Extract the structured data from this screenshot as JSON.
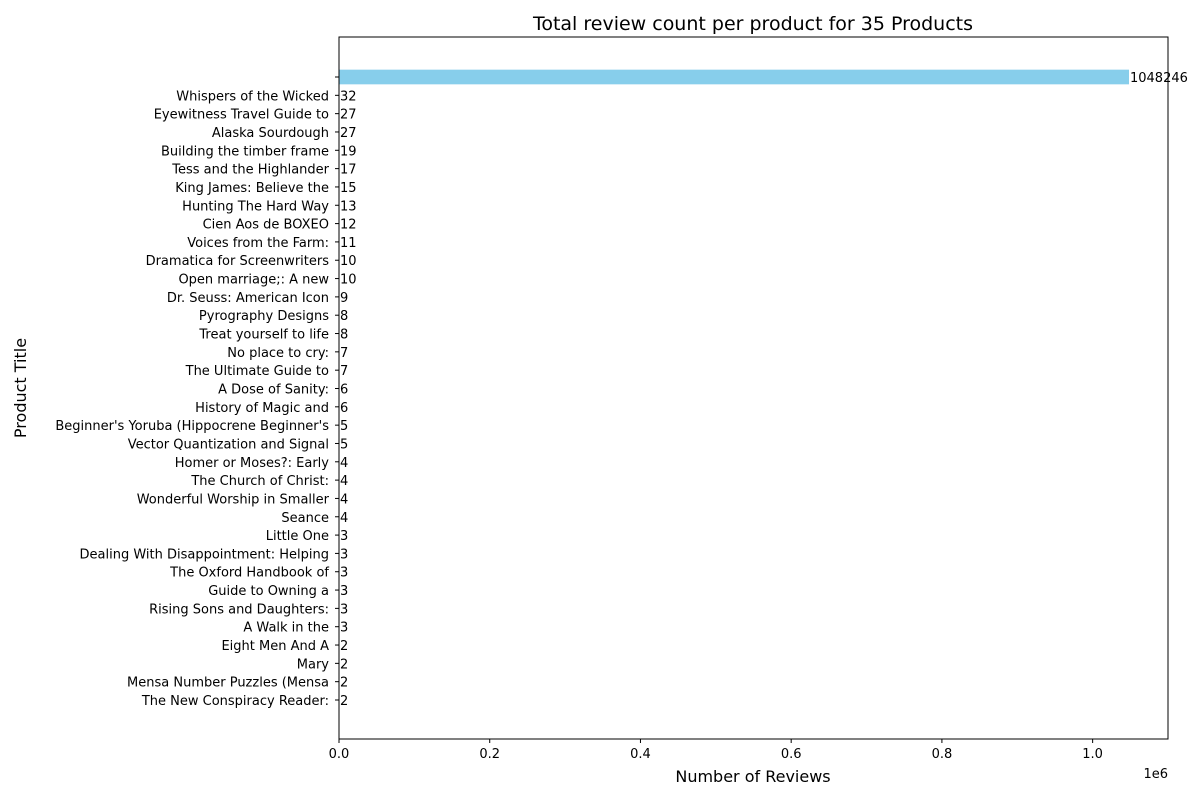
{
  "chart_data": {
    "type": "bar",
    "orientation": "horizontal",
    "title": "Total review count per product for 35 Products",
    "xlabel": "Number of Reviews",
    "ylabel": "Product Title",
    "x_offset_label": "1e6",
    "xlim": [
      0,
      1100000
    ],
    "x_ticks": [
      0,
      200000,
      400000,
      600000,
      800000,
      1000000
    ],
    "x_tick_labels": [
      "0.0",
      "0.2",
      "0.4",
      "0.6",
      "0.8",
      "1.0"
    ],
    "grid": false,
    "bar_color": "#87ceeb",
    "categories": [
      "",
      "Whispers of the Wicked",
      "Eyewitness Travel Guide to",
      "Alaska Sourdough",
      "Building the timber frame",
      "Tess and the Highlander",
      "King James: Believe the",
      "Hunting The Hard Way",
      "Cien Aos de BOXEO",
      "Voices from the Farm:",
      "Dramatica for Screenwriters",
      "Open marriage;: A new",
      "Dr. Seuss: American Icon",
      "Pyrography Designs",
      "Treat yourself to life",
      "No place to cry:",
      "The Ultimate Guide to",
      "A Dose of Sanity:",
      "History of Magic and",
      "Beginner's Yoruba (Hippocrene Beginner's",
      "Vector Quantization and Signal",
      "Homer or Moses?: Early",
      "The Church of Christ:",
      "Wonderful Worship in Smaller",
      "Seance",
      "Little One",
      "Dealing With Disappointment: Helping",
      "The Oxford Handbook of",
      "Guide to Owning a",
      "Rising Sons and Daughters:",
      "A Walk in the",
      "Eight Men And A",
      "Mary",
      "Mensa Number Puzzles (Mensa",
      "The New Conspiracy Reader:"
    ],
    "values": [
      1048246,
      32,
      27,
      27,
      19,
      17,
      15,
      13,
      12,
      11,
      10,
      10,
      9,
      8,
      8,
      7,
      7,
      6,
      6,
      5,
      5,
      4,
      4,
      4,
      4,
      3,
      3,
      3,
      3,
      3,
      3,
      2,
      2,
      2,
      2
    ]
  }
}
